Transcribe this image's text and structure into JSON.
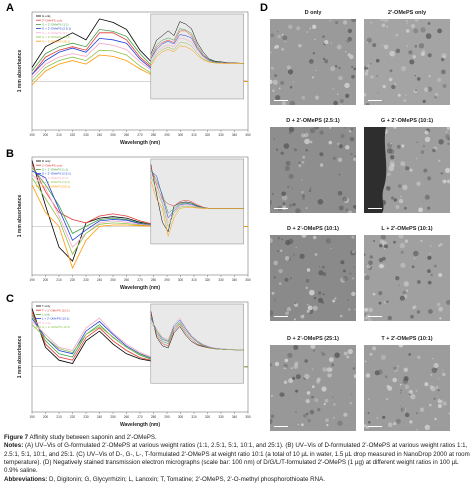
{
  "panels": {
    "A": "A",
    "B": "B",
    "C": "C",
    "D": "D"
  },
  "charts": {
    "ylabel": "1 mm absorbance",
    "xlabel": "Wavelength (nm)",
    "xticks": [
      "190",
      "200",
      "210",
      "220",
      "230",
      "240",
      "250",
      "260",
      "270",
      "280",
      "290",
      "300",
      "310",
      "320",
      "330",
      "340",
      "350"
    ],
    "colors": [
      "#000000",
      "#e53935",
      "#43a047",
      "#1e40d8",
      "#f4a6c8",
      "#8bc34a",
      "#ff9800",
      "#9c27b0"
    ]
  },
  "chart_data": [
    {
      "type": "line",
      "panel": "A",
      "xlabel": "Wavelength (nm)",
      "ylabel": "1 mm absorbance",
      "legend": [
        "G only",
        "2'-OMePS only",
        "G + 2'-OMePS (1:1)",
        "G + 2'-OMePS (2.5:1)",
        "G + 2'-OMePS (5:1)",
        "G + 2'-OMePS (10:1)",
        "G + 2'-OMePS (25:1)"
      ],
      "x": [
        190,
        200,
        210,
        220,
        230,
        240,
        250,
        260,
        270,
        280,
        290,
        300,
        320,
        350
      ],
      "series": [
        {
          "values": [
            0.2,
            0.5,
            0.6,
            0.7,
            0.6,
            0.9,
            0.85,
            0.75,
            0.45,
            0.25,
            0.1,
            0.05,
            0.02,
            0.0
          ]
        },
        {
          "values": [
            0.1,
            0.35,
            0.45,
            0.5,
            0.45,
            0.7,
            0.7,
            0.6,
            0.35,
            0.18,
            0.08,
            0.03,
            0.01,
            0.0
          ]
        },
        {
          "values": [
            0.15,
            0.4,
            0.5,
            0.55,
            0.5,
            0.75,
            0.72,
            0.65,
            0.4,
            0.2,
            0.08,
            0.04,
            0.01,
            0.0
          ]
        },
        {
          "values": [
            0.1,
            0.3,
            0.42,
            0.48,
            0.42,
            0.62,
            0.6,
            0.55,
            0.32,
            0.16,
            0.07,
            0.03,
            0.01,
            0.0
          ]
        },
        {
          "values": [
            0.05,
            0.25,
            0.35,
            0.4,
            0.36,
            0.55,
            0.52,
            0.46,
            0.28,
            0.14,
            0.05,
            0.02,
            0.01,
            0.0
          ]
        },
        {
          "values": [
            0.0,
            0.2,
            0.3,
            0.35,
            0.3,
            0.45,
            0.44,
            0.38,
            0.22,
            0.1,
            0.04,
            0.02,
            0.0,
            0.0
          ]
        },
        {
          "values": [
            -0.05,
            0.15,
            0.25,
            0.3,
            0.25,
            0.38,
            0.36,
            0.3,
            0.18,
            0.08,
            0.03,
            0.01,
            0.0,
            0.0
          ]
        }
      ]
    },
    {
      "type": "line",
      "panel": "B",
      "xlabel": "Wavelength (nm)",
      "ylabel": "1 mm absorbance",
      "legend": [
        "D only",
        "2'-OMePS only",
        "D + 2'-OMePS (1:1)",
        "D + 2'-OMePS (2.5:1)",
        "D + 2'-OMePS (5:1)",
        "D + 2'-OMePS (10:1)",
        "D + 2'-OMePS (25:1)"
      ],
      "x": [
        190,
        200,
        210,
        220,
        230,
        240,
        250,
        260,
        270,
        280,
        290,
        300,
        320,
        350
      ],
      "series": [
        {
          "values": [
            0.95,
            0.3,
            -0.3,
            -0.5,
            0.05,
            0.12,
            0.14,
            0.12,
            0.06,
            0.02,
            0.0,
            0.0,
            0.0,
            0.0
          ]
        },
        {
          "values": [
            0.9,
            0.5,
            0.2,
            0.1,
            0.05,
            0.15,
            0.18,
            0.15,
            0.08,
            0.03,
            0.0,
            0.0,
            0.0,
            0.0
          ]
        },
        {
          "values": [
            0.85,
            0.6,
            0.3,
            -0.1,
            0.0,
            0.1,
            0.12,
            0.1,
            0.05,
            0.02,
            0.0,
            0.0,
            0.0,
            0.0
          ]
        },
        {
          "values": [
            0.8,
            0.7,
            0.25,
            -0.2,
            -0.05,
            0.08,
            0.1,
            0.09,
            0.04,
            0.01,
            0.0,
            0.0,
            0.0,
            0.0
          ]
        },
        {
          "values": [
            0.75,
            0.55,
            0.15,
            -0.3,
            -0.1,
            0.05,
            0.08,
            0.06,
            0.03,
            0.01,
            0.0,
            0.0,
            0.0,
            0.0
          ]
        },
        {
          "values": [
            0.7,
            0.4,
            0.1,
            -0.4,
            -0.1,
            0.03,
            0.05,
            0.04,
            0.02,
            0.0,
            0.0,
            0.0,
            0.0,
            0.0
          ]
        },
        {
          "values": [
            0.6,
            0.2,
            0.0,
            -0.6,
            -0.2,
            0.0,
            0.02,
            0.02,
            0.01,
            0.0,
            0.0,
            0.0,
            0.0,
            0.0
          ]
        }
      ]
    },
    {
      "type": "line",
      "panel": "C",
      "xlabel": "Wavelength (nm)",
      "ylabel": "1 mm absorbance",
      "legend": [
        "T only",
        "T + 2'-OMePS (10:1)",
        "L only",
        "L + 2'-OMePS (10:1)",
        "G only",
        "G + 2'-OMePS (10:1)"
      ],
      "x": [
        190,
        200,
        210,
        220,
        230,
        240,
        250,
        260,
        270,
        280,
        290,
        300,
        320,
        350
      ],
      "series": [
        {
          "values": [
            0.9,
            0.3,
            0.1,
            0.05,
            0.4,
            0.55,
            0.35,
            0.2,
            0.12,
            0.08,
            0.05,
            0.03,
            0.01,
            0.0
          ]
        },
        {
          "values": [
            0.85,
            0.35,
            0.15,
            0.1,
            0.45,
            0.6,
            0.4,
            0.25,
            0.14,
            0.09,
            0.05,
            0.03,
            0.01,
            0.0
          ]
        },
        {
          "values": [
            0.8,
            0.4,
            0.2,
            0.15,
            0.5,
            0.65,
            0.45,
            0.3,
            0.18,
            0.1,
            0.06,
            0.03,
            0.01,
            0.0
          ]
        },
        {
          "values": [
            0.75,
            0.45,
            0.25,
            0.2,
            0.55,
            0.7,
            0.5,
            0.32,
            0.2,
            0.12,
            0.07,
            0.04,
            0.02,
            0.0
          ]
        },
        {
          "values": [
            0.7,
            0.5,
            0.3,
            0.25,
            0.6,
            0.75,
            0.52,
            0.35,
            0.22,
            0.14,
            0.08,
            0.05,
            0.02,
            0.0
          ]
        },
        {
          "values": [
            0.65,
            0.45,
            0.28,
            0.22,
            0.5,
            0.62,
            0.46,
            0.3,
            0.19,
            0.11,
            0.06,
            0.03,
            0.01,
            0.0
          ]
        }
      ]
    }
  ],
  "tem": [
    {
      "title": "D only",
      "tone": "#9a9a9a"
    },
    {
      "title": "2'-OMePS only",
      "tone": "#a4a4a4"
    },
    {
      "title": "D + 2'-OMePS (2.5:1)",
      "tone": "#8e8e8e"
    },
    {
      "title": "G + 2'-OMePS (10:1)",
      "tone": "#9e9e9e"
    },
    {
      "title": "D + 2'-OMePS (10:1)",
      "tone": "#8a8a8a"
    },
    {
      "title": "L + 2'-OMePS (10:1)",
      "tone": "#a0a0a0"
    },
    {
      "title": "D + 2'-OMePS (25:1)",
      "tone": "#989898"
    },
    {
      "title": "T + 2'-OMePS (10:1)",
      "tone": "#9c9c9c"
    }
  ],
  "caption": {
    "title_label": "Figure 7",
    "title_text": " Affinity study between saponin and 2'-OMePS.",
    "notes_label": "Notes:",
    "notes_text": " (A) UV–Vis of G-formulated 2'-OMePS at various weight ratios (1:1, 2.5:1, 5:1, 10:1, and 25:1). (B) UV–Vis of D-formulated 2'-OMePS at various weight ratios 1:1, 2.5:1, 5:1, 10:1, and 25:1. (C) UV–Vis of D-, G-, L-, T-formulated 2'-OMePS at weight ratio 10:1 (a total of 10 µL in water, 1.5 µL drop measured in NanoDrop 2000 at room temperature). (D) Negatively stained transmission electron micrographs (scale bar: 100 nm) of D/G/L/T-formulated 2'-OMePS (1 µg) at different weight ratios in 100 µL 0.9% saline.",
    "abbr_label": "Abbreviations:",
    "abbr_text": " D, Digitonin; G, Glycyrrhizin; L, Lanoxin; T, Tomatine; 2'-OMePS, 2'-O-methyl phosphorothioate RNA."
  }
}
